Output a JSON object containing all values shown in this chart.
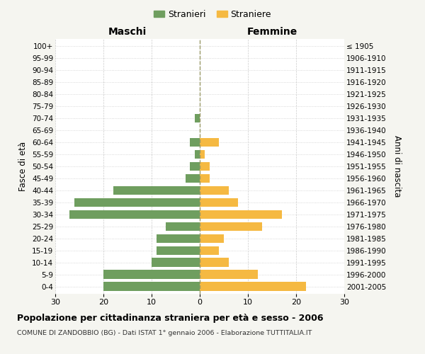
{
  "age_groups": [
    "0-4",
    "5-9",
    "10-14",
    "15-19",
    "20-24",
    "25-29",
    "30-34",
    "35-39",
    "40-44",
    "45-49",
    "50-54",
    "55-59",
    "60-64",
    "65-69",
    "70-74",
    "75-79",
    "80-84",
    "85-89",
    "90-94",
    "95-99",
    "100+"
  ],
  "birth_years": [
    "2001-2005",
    "1996-2000",
    "1991-1995",
    "1986-1990",
    "1981-1985",
    "1976-1980",
    "1971-1975",
    "1966-1970",
    "1961-1965",
    "1956-1960",
    "1951-1955",
    "1946-1950",
    "1941-1945",
    "1936-1940",
    "1931-1935",
    "1926-1930",
    "1921-1925",
    "1916-1920",
    "1911-1915",
    "1906-1910",
    "≤ 1905"
  ],
  "maschi": [
    20,
    20,
    10,
    9,
    9,
    7,
    27,
    26,
    18,
    3,
    2,
    1,
    2,
    0,
    1,
    0,
    0,
    0,
    0,
    0,
    0
  ],
  "femmine": [
    22,
    12,
    6,
    4,
    5,
    13,
    17,
    8,
    6,
    2,
    2,
    1,
    4,
    0,
    0,
    0,
    0,
    0,
    0,
    0,
    0
  ],
  "maschi_color": "#6f9e5f",
  "femmine_color": "#f5b942",
  "title": "Popolazione per cittadinanza straniera per età e sesso - 2006",
  "subtitle": "COMUNE DI ZANDOBBIO (BG) - Dati ISTAT 1° gennaio 2006 - Elaborazione TUTTITALIA.IT",
  "xlabel_left": "Maschi",
  "xlabel_right": "Femmine",
  "ylabel_left": "Fasce di età",
  "ylabel_right": "Anni di nascita",
  "legend_stranieri": "Stranieri",
  "legend_straniere": "Straniere",
  "xlim": 30,
  "background_color": "#f5f5f0",
  "bar_background": "#ffffff",
  "grid_color": "#cccccc",
  "center_line_color": "#999966"
}
